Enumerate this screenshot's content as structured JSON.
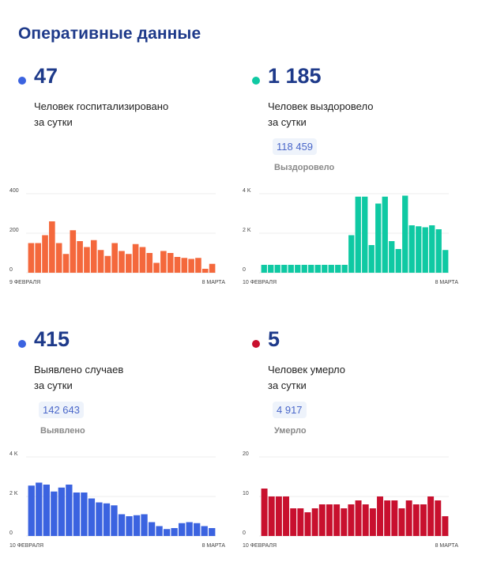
{
  "page_title": "Оперативные данные",
  "panels": [
    {
      "id": "hospitalized",
      "value": "47",
      "desc_line1": "Человек госпитализировано",
      "desc_line2": "за сутки",
      "total": "",
      "total_label": "",
      "dot_color": "#3b63e0"
    },
    {
      "id": "recovered",
      "value": "1 185",
      "desc_line1": "Человек выздоровело",
      "desc_line2": "за сутки",
      "total": "118 459",
      "total_label": "Выздоровело",
      "dot_color": "#0fc9a3"
    },
    {
      "id": "cases",
      "value": "415",
      "desc_line1": "Выявлено случаев",
      "desc_line2": "за сутки",
      "total": "142 643",
      "total_label": "Выявлено",
      "dot_color": "#3b63e0"
    },
    {
      "id": "deaths",
      "value": "5",
      "desc_line1": "Человек умерло",
      "desc_line2": "за сутки",
      "total": "4 917",
      "total_label": "Умерло",
      "dot_color": "#c8102e"
    }
  ],
  "chart_data": [
    {
      "type": "bar",
      "color": "#f4683c",
      "ylim": [
        0,
        400
      ],
      "yticks": [
        0,
        200,
        400
      ],
      "ytick_labels": [
        "0",
        "200",
        "400"
      ],
      "x_start_label": "9 ФЕВРАЛЯ",
      "x_end_label": "8 МАРТА",
      "values": [
        150,
        150,
        190,
        260,
        150,
        95,
        215,
        160,
        130,
        165,
        115,
        85,
        150,
        110,
        95,
        145,
        130,
        100,
        50,
        110,
        100,
        80,
        75,
        70,
        75,
        20,
        45
      ]
    },
    {
      "type": "bar",
      "color": "#0fc9a3",
      "ylim": [
        0,
        4000
      ],
      "yticks": [
        0,
        2000,
        4000
      ],
      "ytick_labels": [
        "0",
        "2 K",
        "4 K"
      ],
      "x_start_label": "10 ФЕВРАЛЯ",
      "x_end_label": "8 МАРТА",
      "values": [
        400,
        400,
        400,
        400,
        400,
        400,
        400,
        400,
        400,
        400,
        400,
        400,
        400,
        1900,
        3850,
        3850,
        1400,
        3500,
        3850,
        1600,
        1200,
        3900,
        2400,
        2350,
        2300,
        2400,
        2200,
        1150
      ]
    },
    {
      "type": "bar",
      "color": "#3b63e0",
      "ylim": [
        0,
        4000
      ],
      "yticks": [
        0,
        2000,
        4000
      ],
      "ytick_labels": [
        "0",
        "2 K",
        "4 K"
      ],
      "x_start_label": "10 ФЕВРАЛЯ",
      "x_end_label": "8 МАРТА",
      "values": [
        2550,
        2700,
        2600,
        2250,
        2450,
        2600,
        2200,
        2200,
        1900,
        1700,
        1650,
        1550,
        1100,
        1000,
        1050,
        1100,
        700,
        500,
        350,
        400,
        650,
        700,
        650,
        500,
        400
      ]
    },
    {
      "type": "bar",
      "color": "#c8102e",
      "ylim": [
        0,
        20
      ],
      "yticks": [
        0,
        10,
        20
      ],
      "ytick_labels": [
        "0",
        "10",
        "20"
      ],
      "x_start_label": "10 ФЕВРАЛЯ",
      "x_end_label": "8 МАРТА",
      "values": [
        12,
        10,
        10,
        10,
        7,
        7,
        6,
        7,
        8,
        8,
        8,
        7,
        8,
        9,
        8,
        7,
        10,
        9,
        9,
        7,
        9,
        8,
        8,
        10,
        9,
        5
      ]
    }
  ]
}
